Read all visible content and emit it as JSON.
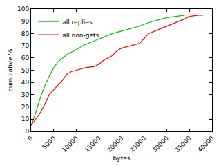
{
  "chart_data": {
    "type": "line",
    "x_label": "bytes",
    "y_label": "cumulative %",
    "xlim": [
      0,
      40000
    ],
    "xticks": [
      0,
      5000,
      10000,
      15000,
      20000,
      25000,
      30000,
      35000,
      40000
    ],
    "ylim": [
      0,
      100
    ],
    "yticks": [
      0,
      10,
      20,
      30,
      40,
      50,
      60,
      70,
      80,
      90,
      100
    ],
    "grid": false,
    "legend": "upper left",
    "series": [
      {
        "name": "all replies",
        "color": "#00c000",
        "x": [
          0,
          1000,
          2000,
          3000,
          4000,
          5000,
          6000,
          7000,
          8000,
          10000,
          12000,
          14000,
          16000,
          18000,
          20000,
          22000,
          24000,
          26000,
          28000,
          30000,
          32000,
          34000
        ],
        "values": [
          5,
          15,
          27,
          37,
          45,
          52,
          57,
          60,
          63,
          67,
          71,
          74,
          77,
          80,
          82,
          84,
          86,
          89,
          91,
          93,
          94,
          95
        ]
      },
      {
        "name": "all non-gets",
        "color": "#ff0000",
        "x": [
          0,
          1000,
          2000,
          3000,
          4000,
          5000,
          6000,
          7000,
          8000,
          9000,
          10000,
          12000,
          14000,
          15000,
          16000,
          17000,
          18000,
          19000,
          20000,
          22000,
          24000,
          25000,
          26000,
          28000,
          30000,
          32000,
          34000,
          35000,
          37000,
          38000
        ],
        "values": [
          5,
          10,
          15,
          22,
          30,
          34,
          38,
          42,
          47,
          49,
          50,
          52,
          53,
          55,
          58,
          60,
          62,
          66,
          68,
          70,
          72,
          76,
          80,
          83,
          86,
          89,
          92,
          94,
          95,
          95
        ]
      }
    ]
  }
}
